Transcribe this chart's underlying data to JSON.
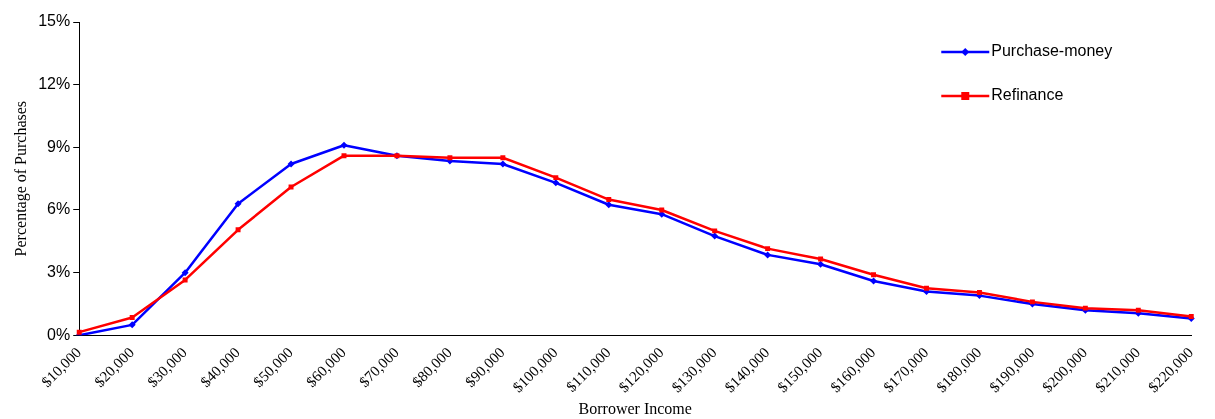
{
  "chart_data": {
    "type": "line",
    "xlabel": "Borrower Income",
    "ylabel": "Percentage of Purchases",
    "categories": [
      "$10,000",
      "$20,000",
      "$30,000",
      "$40,000",
      "$50,000",
      "$60,000",
      "$70,000",
      "$80,000",
      "$90,000",
      "$100,000",
      "$110,000",
      "$120,000",
      "$130,000",
      "$140,000",
      "$150,000",
      "$160,000",
      "$170,000",
      "$180,000",
      "$190,000",
      "$200,000",
      "$210,000",
      "$220,000"
    ],
    "series": [
      {
        "name": "Purchase-money",
        "color": "#0000ff",
        "marker": "diamond",
        "values": [
          0.0,
          0.5,
          3.0,
          6.3,
          8.2,
          9.1,
          8.6,
          8.35,
          8.2,
          7.3,
          6.25,
          5.8,
          4.75,
          3.85,
          3.4,
          2.6,
          2.1,
          1.9,
          1.5,
          1.2,
          1.05,
          0.8
        ]
      },
      {
        "name": "Refinance",
        "color": "#ff0000",
        "marker": "square",
        "values": [
          0.15,
          0.85,
          2.65,
          5.05,
          7.1,
          8.6,
          8.6,
          8.5,
          8.5,
          7.55,
          6.5,
          6.0,
          5.0,
          4.15,
          3.65,
          2.9,
          2.25,
          2.05,
          1.6,
          1.3,
          1.2,
          0.9
        ]
      }
    ],
    "ylim": [
      0,
      15
    ],
    "yticks": [
      {
        "value": 0,
        "label": "0%"
      },
      {
        "value": 3,
        "label": "3%"
      },
      {
        "value": 6,
        "label": "6%"
      },
      {
        "value": 9,
        "label": "9%"
      },
      {
        "value": 12,
        "label": "12%"
      },
      {
        "value": 15,
        "label": "15%"
      }
    ],
    "grid": false,
    "legend": "top right",
    "line_style": "solid"
  }
}
